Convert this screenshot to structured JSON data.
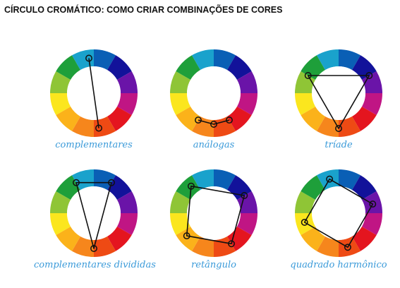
{
  "page": {
    "title": "CÍRCULO CROMÁTICO: COMO CRIAR COMBINAÇÕES DE CORES"
  },
  "wheel_colors": [
    "#0a5fb5",
    "#12129a",
    "#6a14a8",
    "#c01584",
    "#e4151f",
    "#ee4a14",
    "#f6861c",
    "#fbb21a",
    "#fbe61e",
    "#8fc536",
    "#1e9f3a",
    "#1aa2cc"
  ],
  "schemes": [
    {
      "label": "complementares"
    },
    {
      "label": "análogas"
    },
    {
      "label": "tríade"
    },
    {
      "label": "complementares divididas"
    },
    {
      "label": "retângulo"
    },
    {
      "label": "quadrado harmônico"
    }
  ]
}
